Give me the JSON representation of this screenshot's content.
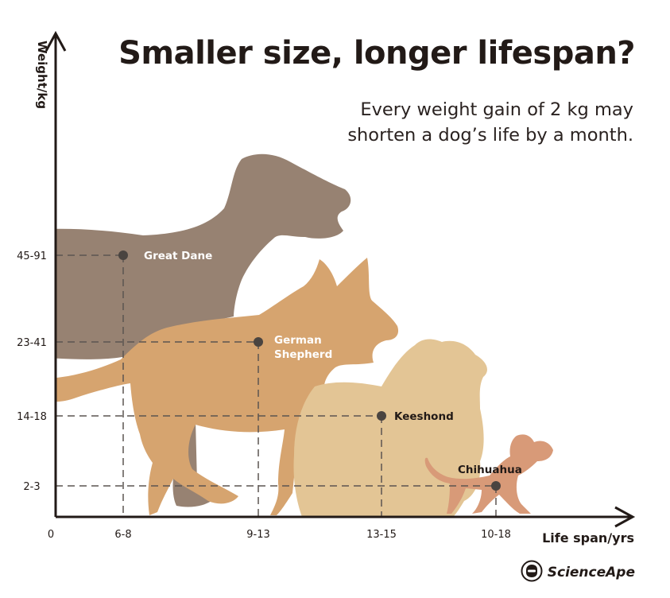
{
  "title": "Smaller size, longer lifespan?",
  "subtitle": "Every weight gain of 2 kg may shorten a dog’s life by a month.",
  "brand": "ScienceApe",
  "brand_icon": "scienceape-logo-icon",
  "colors": {
    "axis": "#221a17",
    "guide": "#5c5551",
    "point": "#4a4440",
    "great_dane": "#978272",
    "german_shepherd": "#d6a46f",
    "keeshond": "#e3c595",
    "chihuahua": "#d89a78"
  },
  "chart_data": {
    "type": "scatter",
    "title": "Smaller size, longer lifespan?",
    "subtitle": "Every weight gain of 2 kg may shorten a dog’s life by a month.",
    "xlabel": "Life span/yrs",
    "ylabel": "Weight/kg",
    "x_ticks": [
      "0",
      "6-8",
      "9-13",
      "13-15",
      "10-18"
    ],
    "y_ticks": [
      "2-3",
      "14-18",
      "23-41",
      "45-91"
    ],
    "grid": false,
    "points": [
      {
        "label": "Great Dane",
        "x": "6-8",
        "y": "45-91"
      },
      {
        "label": "German Shepherd",
        "x": "9-13",
        "y": "23-41"
      },
      {
        "label": "Keeshond",
        "x": "13-15",
        "y": "14-18"
      },
      {
        "label": "Chihuahua",
        "x": "10-18",
        "y": "2-3"
      }
    ]
  }
}
